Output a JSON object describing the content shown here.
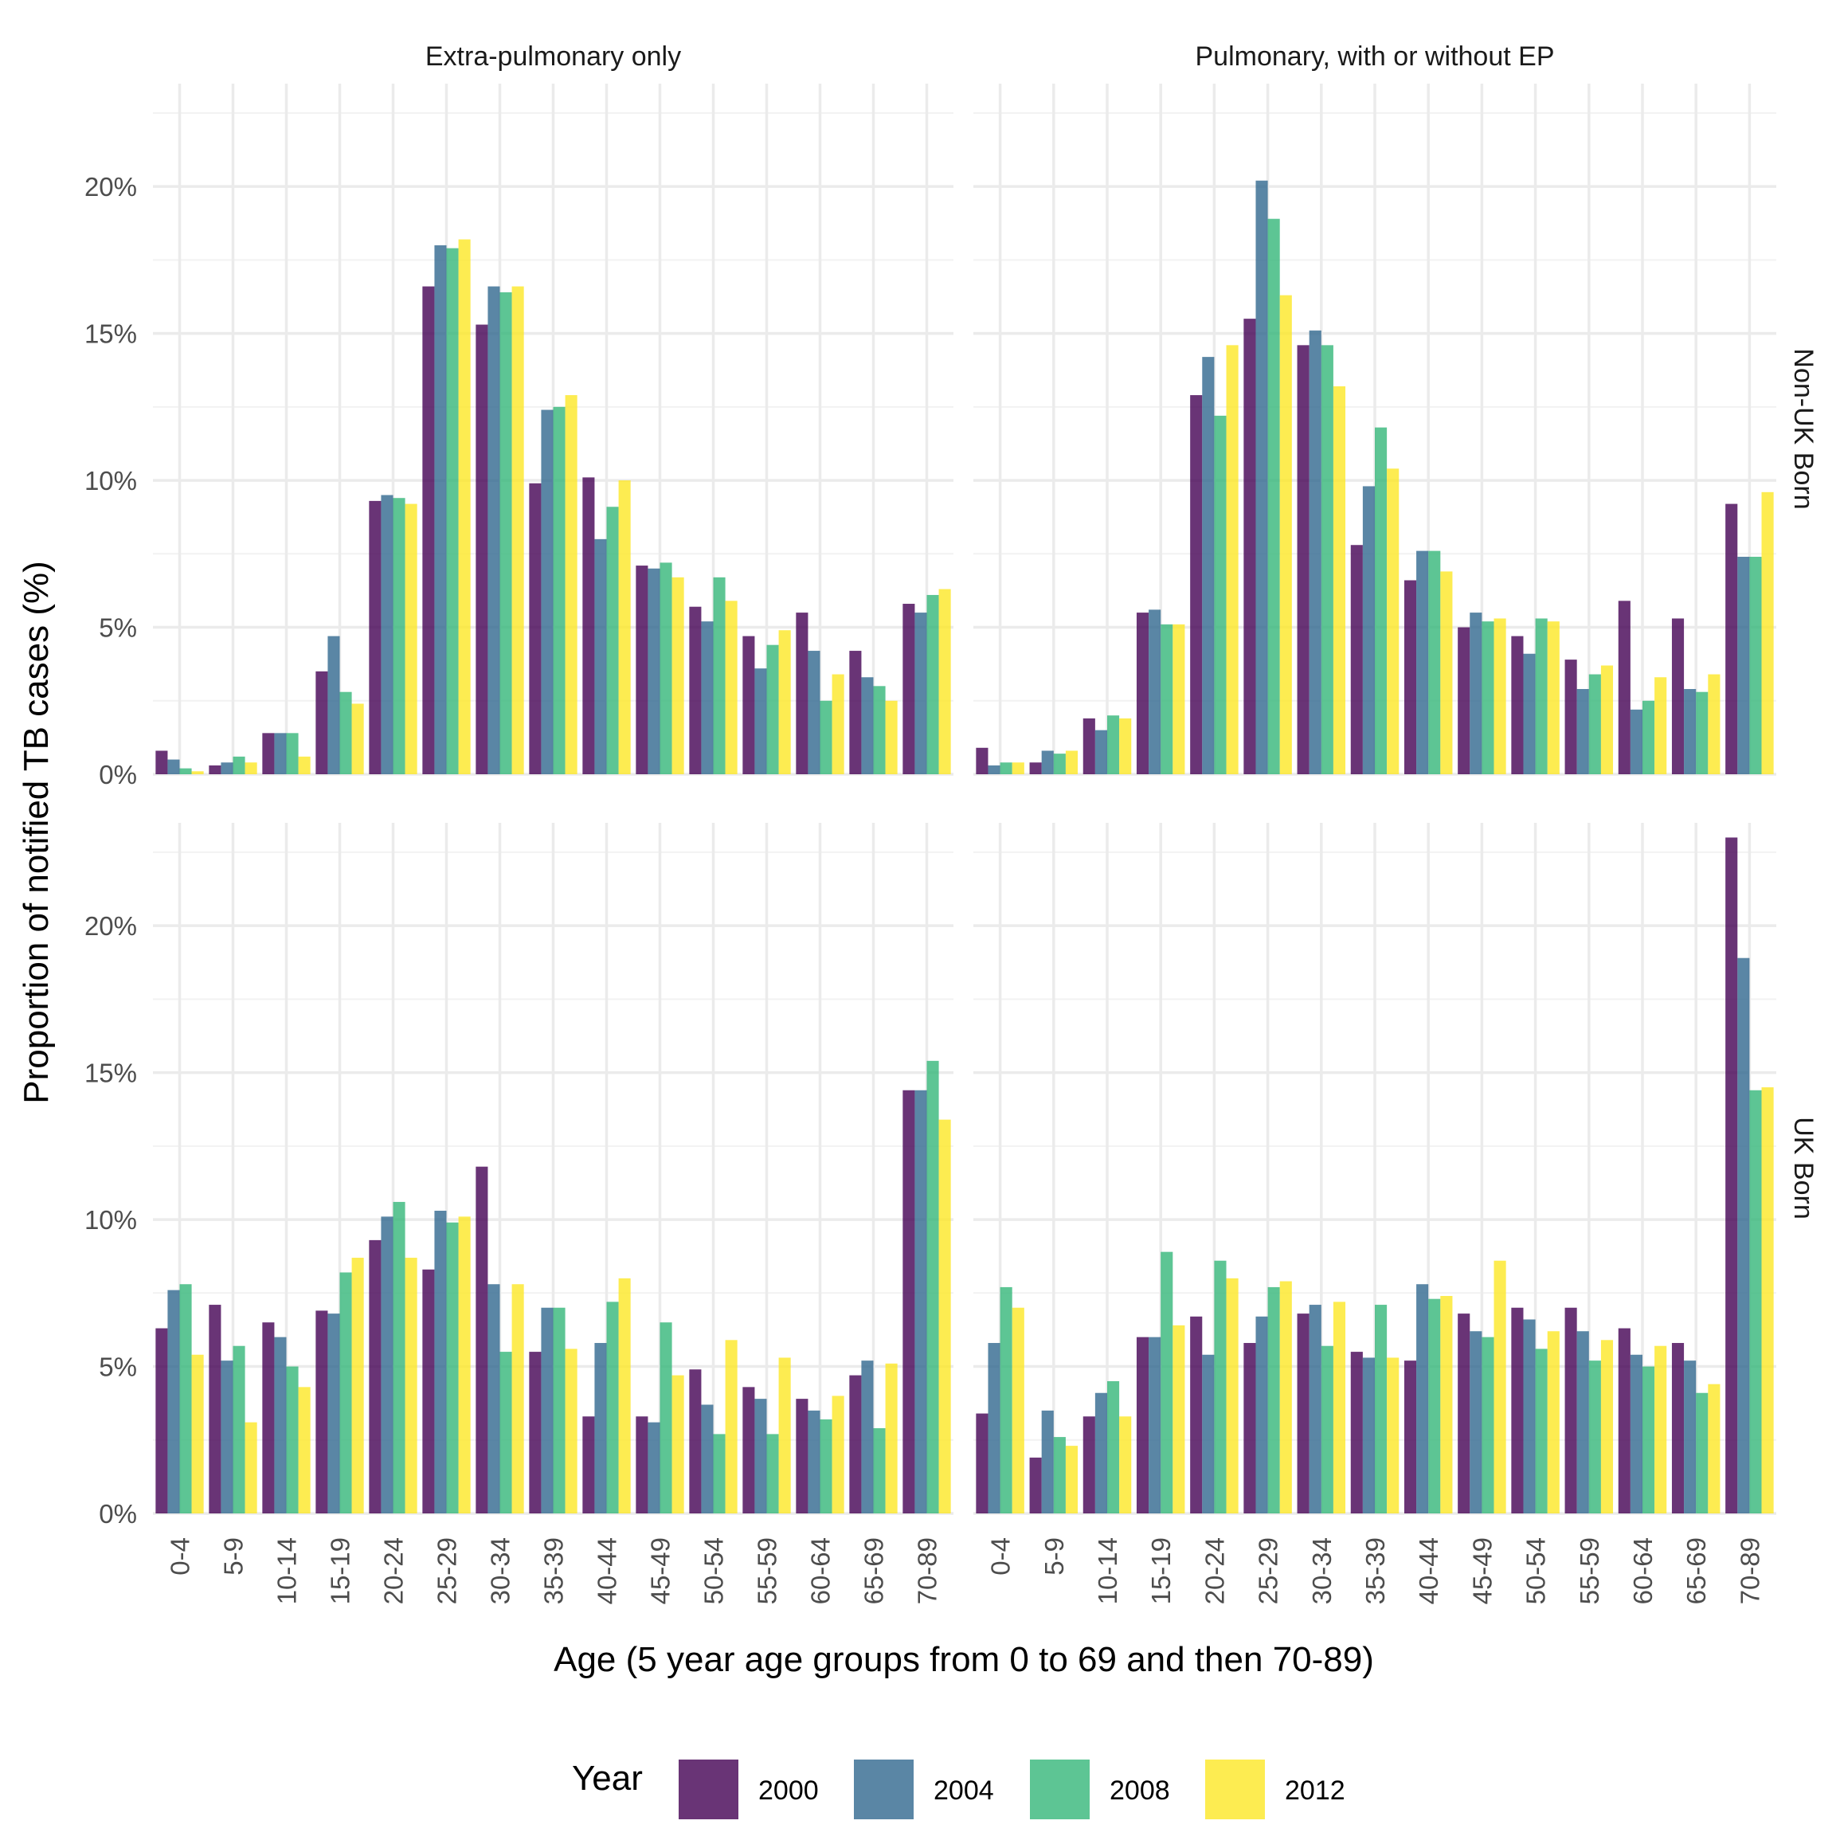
{
  "chart_data": {
    "type": "bar",
    "xlabel": "Age (5 year age groups from 0 to 69 and then 70-89)",
    "ylabel": "Proportion of notified TB cases (%)",
    "ylim": [
      0,
      23.5
    ],
    "yticks": [
      0,
      5,
      10,
      15,
      20
    ],
    "ytick_labels": [
      "0%",
      "5%",
      "10%",
      "15%",
      "20%"
    ],
    "grid": true,
    "legend": {
      "title": "Year",
      "position": "bottom"
    },
    "categories": [
      "0-4",
      "5-9",
      "10-14",
      "15-19",
      "20-24",
      "25-29",
      "30-34",
      "35-39",
      "40-44",
      "45-49",
      "50-54",
      "55-59",
      "60-64",
      "65-69",
      "70-89"
    ],
    "series_names": [
      "2000",
      "2004",
      "2008",
      "2012"
    ],
    "colors": [
      "#440154",
      "#31688E",
      "#35B779",
      "#FDE725"
    ],
    "column_facets": [
      "Extra-pulmonary only",
      "Pulmonary, with or without EP"
    ],
    "row_facets": [
      "Non-UK Born",
      "UK Born"
    ],
    "panels": [
      {
        "row": "Non-UK Born",
        "column": "Extra-pulmonary only",
        "series": [
          {
            "name": "2000",
            "values": [
              0.8,
              0.3,
              1.4,
              3.5,
              9.3,
              16.6,
              15.3,
              9.9,
              10.1,
              7.1,
              5.7,
              4.7,
              5.5,
              4.2,
              5.8
            ]
          },
          {
            "name": "2004",
            "values": [
              0.5,
              0.4,
              1.4,
              4.7,
              9.5,
              18.0,
              16.6,
              12.4,
              8.0,
              7.0,
              5.2,
              3.6,
              4.2,
              3.3,
              5.5
            ]
          },
          {
            "name": "2008",
            "values": [
              0.2,
              0.6,
              1.4,
              2.8,
              9.4,
              17.9,
              16.4,
              12.5,
              9.1,
              7.2,
              6.7,
              4.4,
              2.5,
              3.0,
              6.1
            ]
          },
          {
            "name": "2012",
            "values": [
              0.1,
              0.4,
              0.6,
              2.4,
              9.2,
              18.2,
              16.6,
              12.9,
              10.0,
              6.7,
              5.9,
              4.9,
              3.4,
              2.5,
              6.3
            ]
          }
        ]
      },
      {
        "row": "Non-UK Born",
        "column": "Pulmonary, with or without EP",
        "series": [
          {
            "name": "2000",
            "values": [
              0.9,
              0.4,
              1.9,
              5.5,
              12.9,
              15.5,
              14.6,
              7.8,
              6.6,
              5.0,
              4.7,
              3.9,
              5.9,
              5.3,
              9.2
            ]
          },
          {
            "name": "2004",
            "values": [
              0.3,
              0.8,
              1.5,
              5.6,
              14.2,
              20.2,
              15.1,
              9.8,
              7.6,
              5.5,
              4.1,
              2.9,
              2.2,
              2.9,
              7.4
            ]
          },
          {
            "name": "2008",
            "values": [
              0.4,
              0.7,
              2.0,
              5.1,
              12.2,
              18.9,
              14.6,
              11.8,
              7.6,
              5.2,
              5.3,
              3.4,
              2.5,
              2.8,
              7.4
            ]
          },
          {
            "name": "2012",
            "values": [
              0.4,
              0.8,
              1.9,
              5.1,
              14.6,
              16.3,
              13.2,
              10.4,
              6.9,
              5.3,
              5.2,
              3.7,
              3.3,
              3.4,
              9.6
            ]
          }
        ]
      },
      {
        "row": "UK Born",
        "column": "Extra-pulmonary only",
        "series": [
          {
            "name": "2000",
            "values": [
              6.3,
              7.1,
              6.5,
              6.9,
              9.3,
              8.3,
              11.8,
              5.5,
              3.3,
              3.3,
              4.9,
              4.3,
              3.9,
              4.7,
              14.4
            ]
          },
          {
            "name": "2004",
            "values": [
              7.6,
              5.2,
              6.0,
              6.8,
              10.1,
              10.3,
              7.8,
              7.0,
              5.8,
              3.1,
              3.7,
              3.9,
              3.5,
              5.2,
              14.4
            ]
          },
          {
            "name": "2008",
            "values": [
              7.8,
              5.7,
              5.0,
              8.2,
              10.6,
              9.9,
              5.5,
              7.0,
              7.2,
              6.5,
              2.7,
              2.7,
              3.2,
              2.9,
              15.4
            ]
          },
          {
            "name": "2012",
            "values": [
              5.4,
              3.1,
              4.3,
              8.7,
              8.7,
              10.1,
              7.8,
              5.6,
              8.0,
              4.7,
              5.9,
              5.3,
              4.0,
              5.1,
              13.4
            ]
          }
        ]
      },
      {
        "row": "UK Born",
        "column": "Pulmonary, with or without EP",
        "series": [
          {
            "name": "2000",
            "values": [
              3.4,
              1.9,
              3.3,
              6.0,
              6.7,
              5.8,
              6.8,
              5.5,
              5.2,
              6.8,
              7.0,
              7.0,
              6.3,
              5.8,
              23.0
            ]
          },
          {
            "name": "2004",
            "values": [
              5.8,
              3.5,
              4.1,
              6.0,
              5.4,
              6.7,
              7.1,
              5.3,
              7.8,
              6.2,
              6.6,
              6.2,
              5.4,
              5.2,
              18.9
            ]
          },
          {
            "name": "2008",
            "values": [
              7.7,
              2.6,
              4.5,
              8.9,
              8.6,
              7.7,
              5.7,
              7.1,
              7.3,
              6.0,
              5.6,
              5.2,
              5.0,
              4.1,
              14.4
            ]
          },
          {
            "name": "2012",
            "values": [
              7.0,
              2.3,
              3.3,
              6.4,
              8.0,
              7.9,
              7.2,
              5.3,
              7.4,
              8.6,
              6.2,
              5.9,
              5.7,
              4.4,
              14.5
            ]
          }
        ]
      }
    ]
  }
}
